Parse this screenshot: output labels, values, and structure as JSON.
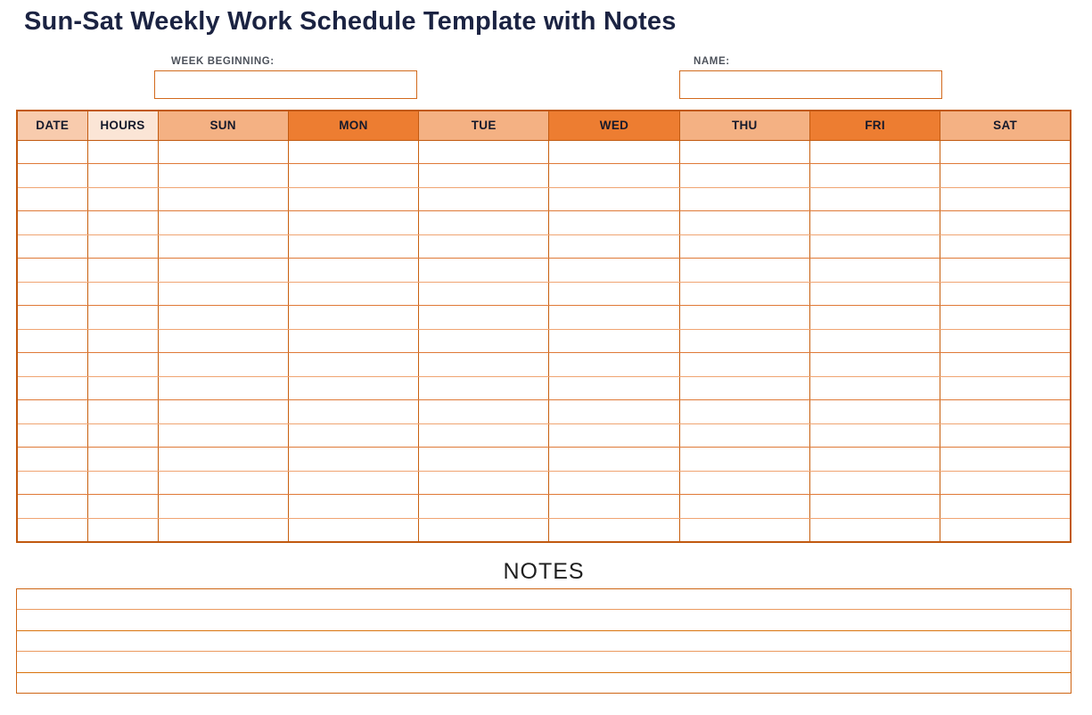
{
  "page": {
    "title": "Sun-Sat Weekly Work Schedule Template with Notes"
  },
  "fields": {
    "week_beginning": {
      "label": "WEEK BEGINNING:",
      "value": "",
      "placeholder": ""
    },
    "name": {
      "label": "NAME:",
      "value": "",
      "placeholder": ""
    }
  },
  "schedule_table": {
    "columns": [
      {
        "label": "DATE",
        "fill": "#F8CBAD"
      },
      {
        "label": "HOURS",
        "fill": "#FBE5D6"
      },
      {
        "label": "SUN",
        "fill": "#F4B183"
      },
      {
        "label": "MON",
        "fill": "#ED7D31"
      },
      {
        "label": "TUE",
        "fill": "#F4B183"
      },
      {
        "label": "WED",
        "fill": "#ED7D31"
      },
      {
        "label": "THU",
        "fill": "#F4B183"
      },
      {
        "label": "FRI",
        "fill": "#ED7D31"
      },
      {
        "label": "SAT",
        "fill": "#F4B183"
      }
    ],
    "body_rows": 17,
    "cell_values": []
  },
  "notes": {
    "heading": "NOTES",
    "lines": 5,
    "values": [
      "",
      "",
      "",
      "",
      ""
    ]
  },
  "colors": {
    "accent_orange_dark": "#ED7D31",
    "accent_orange_light": "#F4B183",
    "accent_orange_pale": "#F8CBAD",
    "accent_orange_faint": "#FBE5D6",
    "border_orange": "#C1590F",
    "title_navy": "#1B2342",
    "label_gray": "#4D525B"
  }
}
